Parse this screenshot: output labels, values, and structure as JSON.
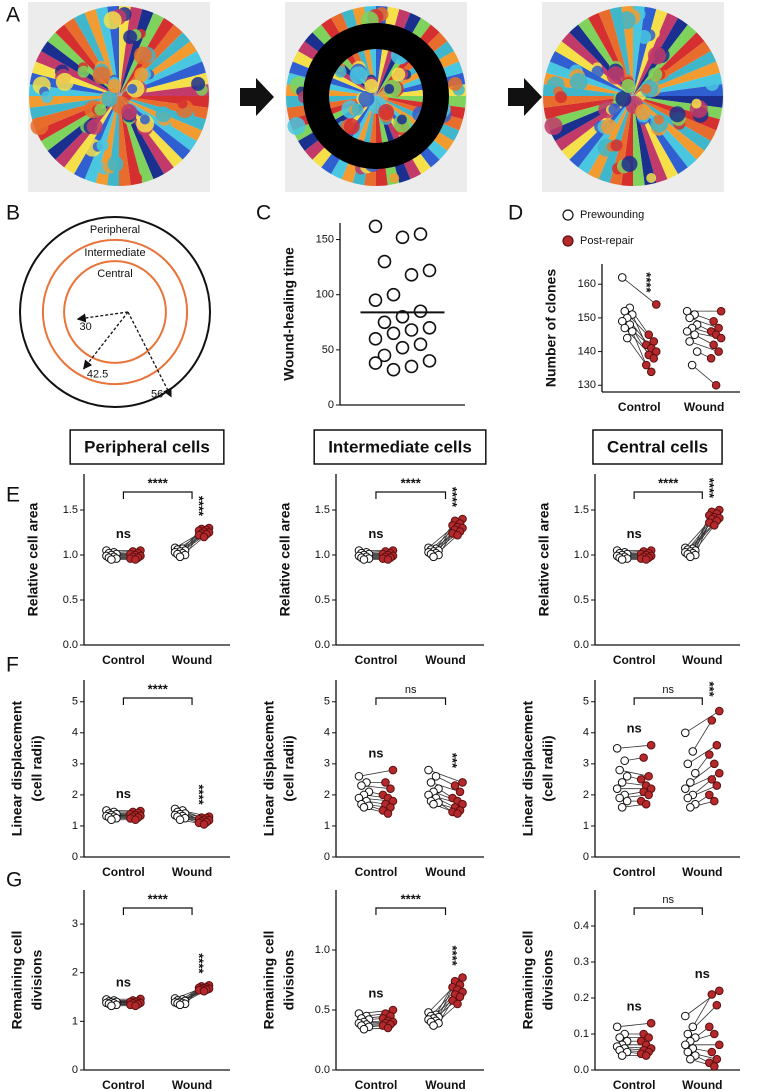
{
  "panel_a": {
    "panel": "A"
  },
  "chart_data": [
    {
      "type": "rings",
      "panel": "B",
      "rings": [
        {
          "label": "Peripheral",
          "radius": 56,
          "color": "#111111"
        },
        {
          "label": "Intermediate",
          "radius": 42.5,
          "color": "#e8743b"
        },
        {
          "label": "Central",
          "radius": 30,
          "color": "#e8743b"
        }
      ]
    },
    {
      "type": "strip",
      "panel": "C",
      "ylabel": "Wound-healing time",
      "values": [
        162,
        155,
        152,
        130,
        122,
        118,
        100,
        95,
        85,
        80,
        75,
        70,
        68,
        65,
        60,
        55,
        52,
        45,
        40,
        35,
        32,
        38
      ],
      "mean": 84,
      "color": "#ffffff",
      "ylim": [
        0,
        165
      ],
      "yticks": [
        0,
        50,
        100,
        150
      ]
    },
    {
      "type": "paired",
      "panel": "D",
      "ylabel": "Number of clones",
      "categories": [
        "Control",
        "Wound"
      ],
      "series": [
        {
          "name": "Prewounding",
          "color": "#ffffff",
          "values": [
            [
              162,
              153,
              152,
              151,
              150,
              149,
              148,
              147,
              146,
              144
            ],
            [
              152,
              151,
              150,
              148,
              147,
              146,
              145,
              143,
              140,
              136
            ]
          ]
        },
        {
          "name": "Post-repair",
          "color": "#b5282b",
          "values": [
            [
              154,
              145,
              143,
              142,
              141,
              140,
              139,
              138,
              136,
              134
            ],
            [
              152,
              149,
              147,
              146,
              145,
              144,
              142,
              140,
              138,
              130
            ]
          ]
        }
      ],
      "labels": {
        "control": "****"
      },
      "ylim": [
        128,
        166
      ],
      "yticks": [
        130,
        140,
        150,
        160
      ]
    },
    {
      "type": "paired",
      "panel": "E",
      "title": "Peripheral cells",
      "ylabel": "Relative cell area",
      "categories": [
        "Control",
        "Wound"
      ],
      "series": [
        {
          "color": "#ffffff",
          "values": [
            [
              1.05,
              1.03,
              1.02,
              1.01,
              1.0,
              0.99,
              0.98,
              0.97,
              0.96,
              0.95
            ],
            [
              1.08,
              1.07,
              1.06,
              1.05,
              1.04,
              1.03,
              1.02,
              1.01,
              1.0,
              0.98
            ]
          ]
        },
        {
          "color": "#b5282b",
          "values": [
            [
              1.05,
              1.04,
              1.02,
              1.01,
              1.0,
              0.99,
              0.98,
              0.97,
              0.96,
              0.95
            ],
            [
              1.3,
              1.29,
              1.28,
              1.27,
              1.26,
              1.25,
              1.24,
              1.23,
              1.22,
              1.2
            ]
          ]
        }
      ],
      "labels": {
        "control": "ns",
        "wound": "****",
        "bracket": "****"
      },
      "ylim": [
        0,
        1.9
      ],
      "yticks": [
        {
          "value": 0,
          "label": "0.0"
        },
        0.5,
        {
          "value": 1,
          "label": "1.0"
        },
        1.5
      ]
    },
    {
      "type": "paired",
      "title": "Intermediate cells",
      "ylabel": "Relative cell area",
      "categories": [
        "Control",
        "Wound"
      ],
      "series": [
        {
          "color": "#ffffff",
          "values": [
            [
              1.05,
              1.03,
              1.02,
              1.01,
              1.0,
              0.99,
              0.98,
              0.97,
              0.96,
              0.95
            ],
            [
              1.08,
              1.07,
              1.06,
              1.05,
              1.04,
              1.03,
              1.02,
              1.01,
              1.0,
              0.98
            ]
          ]
        },
        {
          "color": "#b5282b",
          "values": [
            [
              1.05,
              1.04,
              1.02,
              1.01,
              1.0,
              0.99,
              0.98,
              0.97,
              0.96,
              0.95
            ],
            [
              1.4,
              1.38,
              1.35,
              1.33,
              1.31,
              1.3,
              1.28,
              1.26,
              1.24,
              1.22
            ]
          ]
        }
      ],
      "labels": {
        "control": "ns",
        "wound": "****",
        "bracket": "****"
      },
      "ylim": [
        0,
        1.9
      ],
      "yticks": [
        {
          "value": 0,
          "label": "0.0"
        },
        0.5,
        {
          "value": 1,
          "label": "1.0"
        },
        1.5
      ]
    },
    {
      "type": "paired",
      "title": "Central cells",
      "ylabel": "Relative cell area",
      "categories": [
        "Control",
        "Wound"
      ],
      "series": [
        {
          "color": "#ffffff",
          "values": [
            [
              1.05,
              1.03,
              1.02,
              1.01,
              1.0,
              0.99,
              0.98,
              0.97,
              0.96,
              0.95
            ],
            [
              1.08,
              1.07,
              1.06,
              1.05,
              1.04,
              1.03,
              1.02,
              1.01,
              1.0,
              0.98
            ]
          ]
        },
        {
          "color": "#b5282b",
          "values": [
            [
              1.05,
              1.04,
              1.02,
              1.01,
              1.0,
              0.99,
              0.98,
              0.97,
              0.96,
              0.95
            ],
            [
              1.5,
              1.48,
              1.46,
              1.44,
              1.42,
              1.41,
              1.4,
              1.38,
              1.36,
              1.33
            ]
          ]
        }
      ],
      "labels": {
        "control": "ns",
        "wound": "****",
        "bracket": "****"
      },
      "ylim": [
        0,
        1.9
      ],
      "yticks": [
        {
          "value": 0,
          "label": "0.0"
        },
        0.5,
        {
          "value": 1,
          "label": "1.0"
        },
        1.5
      ]
    },
    {
      "type": "paired",
      "panel": "F",
      "ylabel": [
        "Linear displacement",
        "(cell radii)"
      ],
      "categories": [
        "Control",
        "Wound"
      ],
      "series": [
        {
          "color": "#ffffff",
          "values": [
            [
              1.5,
              1.45,
              1.4,
              1.38,
              1.35,
              1.32,
              1.3,
              1.28,
              1.25,
              1.2
            ],
            [
              1.55,
              1.5,
              1.45,
              1.4,
              1.38,
              1.35,
              1.32,
              1.3,
              1.25,
              1.2
            ]
          ]
        },
        {
          "color": "#b5282b",
          "values": [
            [
              1.48,
              1.45,
              1.42,
              1.38,
              1.35,
              1.33,
              1.3,
              1.27,
              1.24,
              1.2
            ],
            [
              1.3,
              1.27,
              1.25,
              1.22,
              1.2,
              1.18,
              1.15,
              1.12,
              1.1,
              1.05
            ]
          ]
        }
      ],
      "labels": {
        "control": "ns",
        "wound": "****",
        "bracket": "****"
      },
      "ylim": [
        0,
        5.7
      ],
      "yticks": [
        0,
        1,
        2,
        3,
        4,
        5
      ]
    },
    {
      "type": "paired",
      "ylabel": [
        "Linear displacement",
        "(cell radii)"
      ],
      "categories": [
        "Control",
        "Wound"
      ],
      "series": [
        {
          "color": "#ffffff",
          "values": [
            [
              2.6,
              2.4,
              2.3,
              2.1,
              2.0,
              1.9,
              1.8,
              1.7,
              1.65,
              1.6
            ],
            [
              2.8,
              2.6,
              2.4,
              2.2,
              2.1,
              2.0,
              1.9,
              1.8,
              1.75,
              1.7
            ]
          ]
        },
        {
          "color": "#b5282b",
          "values": [
            [
              2.8,
              2.4,
              2.2,
              2.0,
              1.9,
              1.8,
              1.7,
              1.6,
              1.5,
              1.4
            ],
            [
              2.4,
              2.3,
              2.1,
              1.9,
              1.8,
              1.7,
              1.6,
              1.5,
              1.45,
              1.4
            ]
          ]
        }
      ],
      "labels": {
        "control": "ns",
        "wound": "***",
        "bracket": "ns"
      },
      "ylim": [
        0,
        5.7
      ],
      "yticks": [
        0,
        1,
        2,
        3,
        4,
        5
      ]
    },
    {
      "type": "paired",
      "ylabel": [
        "Linear displacement",
        "(cell radii)"
      ],
      "categories": [
        "Control",
        "Wound"
      ],
      "series": [
        {
          "color": "#ffffff",
          "values": [
            [
              3.5,
              3.1,
              2.8,
              2.6,
              2.4,
              2.2,
              2.0,
              1.9,
              1.8,
              1.6
            ],
            [
              4.0,
              3.4,
              3.0,
              2.7,
              2.4,
              2.2,
              2.0,
              1.9,
              1.7,
              1.6
            ]
          ]
        },
        {
          "color": "#b5282b",
          "values": [
            [
              3.6,
              3.2,
              2.6,
              2.5,
              2.3,
              2.2,
              2.1,
              2.0,
              1.8,
              1.7
            ],
            [
              4.7,
              4.4,
              3.6,
              3.3,
              3.0,
              2.7,
              2.5,
              2.3,
              2.0,
              1.8
            ]
          ]
        }
      ],
      "labels": {
        "control": "ns",
        "wound": "***",
        "bracket": "ns"
      },
      "ylim": [
        0,
        5.7
      ],
      "yticks": [
        0,
        1,
        2,
        3,
        4,
        5
      ]
    },
    {
      "type": "paired",
      "panel": "G",
      "ylabel": [
        "Remaining cell",
        "divisions"
      ],
      "categories": [
        "Control",
        "Wound"
      ],
      "series": [
        {
          "color": "#ffffff",
          "values": [
            [
              1.45,
              1.43,
              1.41,
              1.4,
              1.39,
              1.38,
              1.37,
              1.36,
              1.34,
              1.32
            ],
            [
              1.47,
              1.45,
              1.43,
              1.42,
              1.4,
              1.39,
              1.38,
              1.37,
              1.36,
              1.34
            ]
          ]
        },
        {
          "color": "#b5282b",
          "values": [
            [
              1.46,
              1.43,
              1.41,
              1.4,
              1.39,
              1.38,
              1.37,
              1.35,
              1.34,
              1.32
            ],
            [
              1.74,
              1.72,
              1.7,
              1.69,
              1.68,
              1.67,
              1.66,
              1.65,
              1.64,
              1.62
            ]
          ]
        }
      ],
      "labels": {
        "control": "ns",
        "wound": "****",
        "bracket": "****"
      },
      "ylim": [
        0,
        3.7
      ],
      "yticks": [
        0,
        1,
        2,
        3
      ]
    },
    {
      "type": "paired",
      "ylabel": [
        "Remaining cell",
        "divisions"
      ],
      "categories": [
        "Control",
        "Wound"
      ],
      "series": [
        {
          "color": "#ffffff",
          "values": [
            [
              0.47,
              0.45,
              0.43,
              0.42,
              0.4,
              0.39,
              0.38,
              0.37,
              0.36,
              0.34
            ],
            [
              0.48,
              0.46,
              0.45,
              0.44,
              0.43,
              0.42,
              0.41,
              0.4,
              0.39,
              0.37
            ]
          ]
        },
        {
          "color": "#b5282b",
          "values": [
            [
              0.5,
              0.47,
              0.45,
              0.43,
              0.41,
              0.4,
              0.39,
              0.38,
              0.37,
              0.35
            ],
            [
              0.77,
              0.74,
              0.71,
              0.69,
              0.67,
              0.65,
              0.63,
              0.61,
              0.58,
              0.55
            ]
          ]
        }
      ],
      "labels": {
        "control": "ns",
        "wound": "****",
        "bracket": "****"
      },
      "ylim": [
        0,
        1.5
      ],
      "yticks": [
        {
          "value": 0,
          "label": "0.0"
        },
        0.5,
        {
          "value": 1,
          "label": "1.0"
        }
      ]
    },
    {
      "type": "paired",
      "ylabel": [
        "Remaining cell",
        "divisions"
      ],
      "categories": [
        "Control",
        "Wound"
      ],
      "series": [
        {
          "color": "#ffffff",
          "values": [
            [
              0.12,
              0.1,
              0.09,
              0.08,
              0.07,
              0.065,
              0.06,
              0.055,
              0.05,
              0.04
            ],
            [
              0.15,
              0.12,
              0.1,
              0.09,
              0.08,
              0.07,
              0.06,
              0.05,
              0.04,
              0.03
            ]
          ]
        },
        {
          "color": "#b5282b",
          "values": [
            [
              0.13,
              0.1,
              0.09,
              0.08,
              0.07,
              0.06,
              0.055,
              0.05,
              0.045,
              0.04
            ],
            [
              0.22,
              0.21,
              0.18,
              0.12,
              0.1,
              0.07,
              0.05,
              0.03,
              0.02,
              0.01
            ]
          ]
        }
      ],
      "labels": {
        "control": "ns",
        "wound": "ns",
        "bracket": "ns"
      },
      "ylim": [
        0,
        0.5
      ],
      "yticks": [
        {
          "value": 0,
          "label": "0.0"
        },
        0.1,
        0.2,
        0.3,
        0.4
      ]
    }
  ]
}
